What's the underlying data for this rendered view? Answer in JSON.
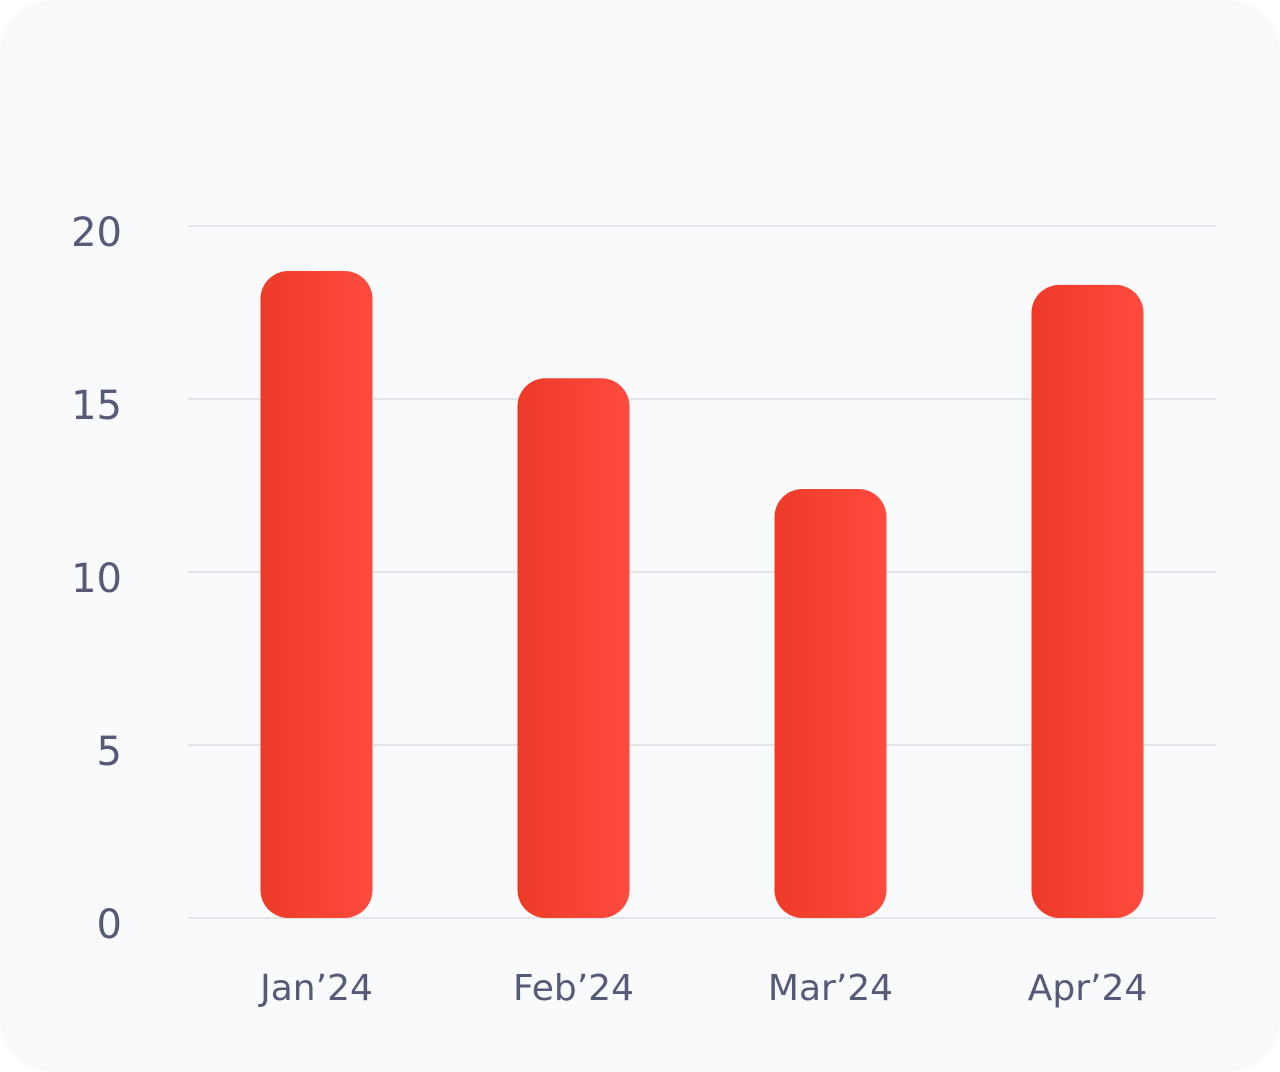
{
  "chart_data": {
    "type": "bar",
    "categories": [
      "Jan’24",
      "Feb’24",
      "Mar’24",
      "Apr’24"
    ],
    "values": [
      18.7,
      15.6,
      12.4,
      18.3
    ],
    "yticks": [
      "0",
      "5",
      "10",
      "15",
      "20"
    ],
    "ylim": [
      0,
      20
    ],
    "grid": true,
    "colors": {
      "bar_start": "#ee3a28",
      "bar_end": "#ff4b3e",
      "grid": "#e3e5ea",
      "tick_text": "#565a78",
      "background": "#f8fafb"
    }
  }
}
